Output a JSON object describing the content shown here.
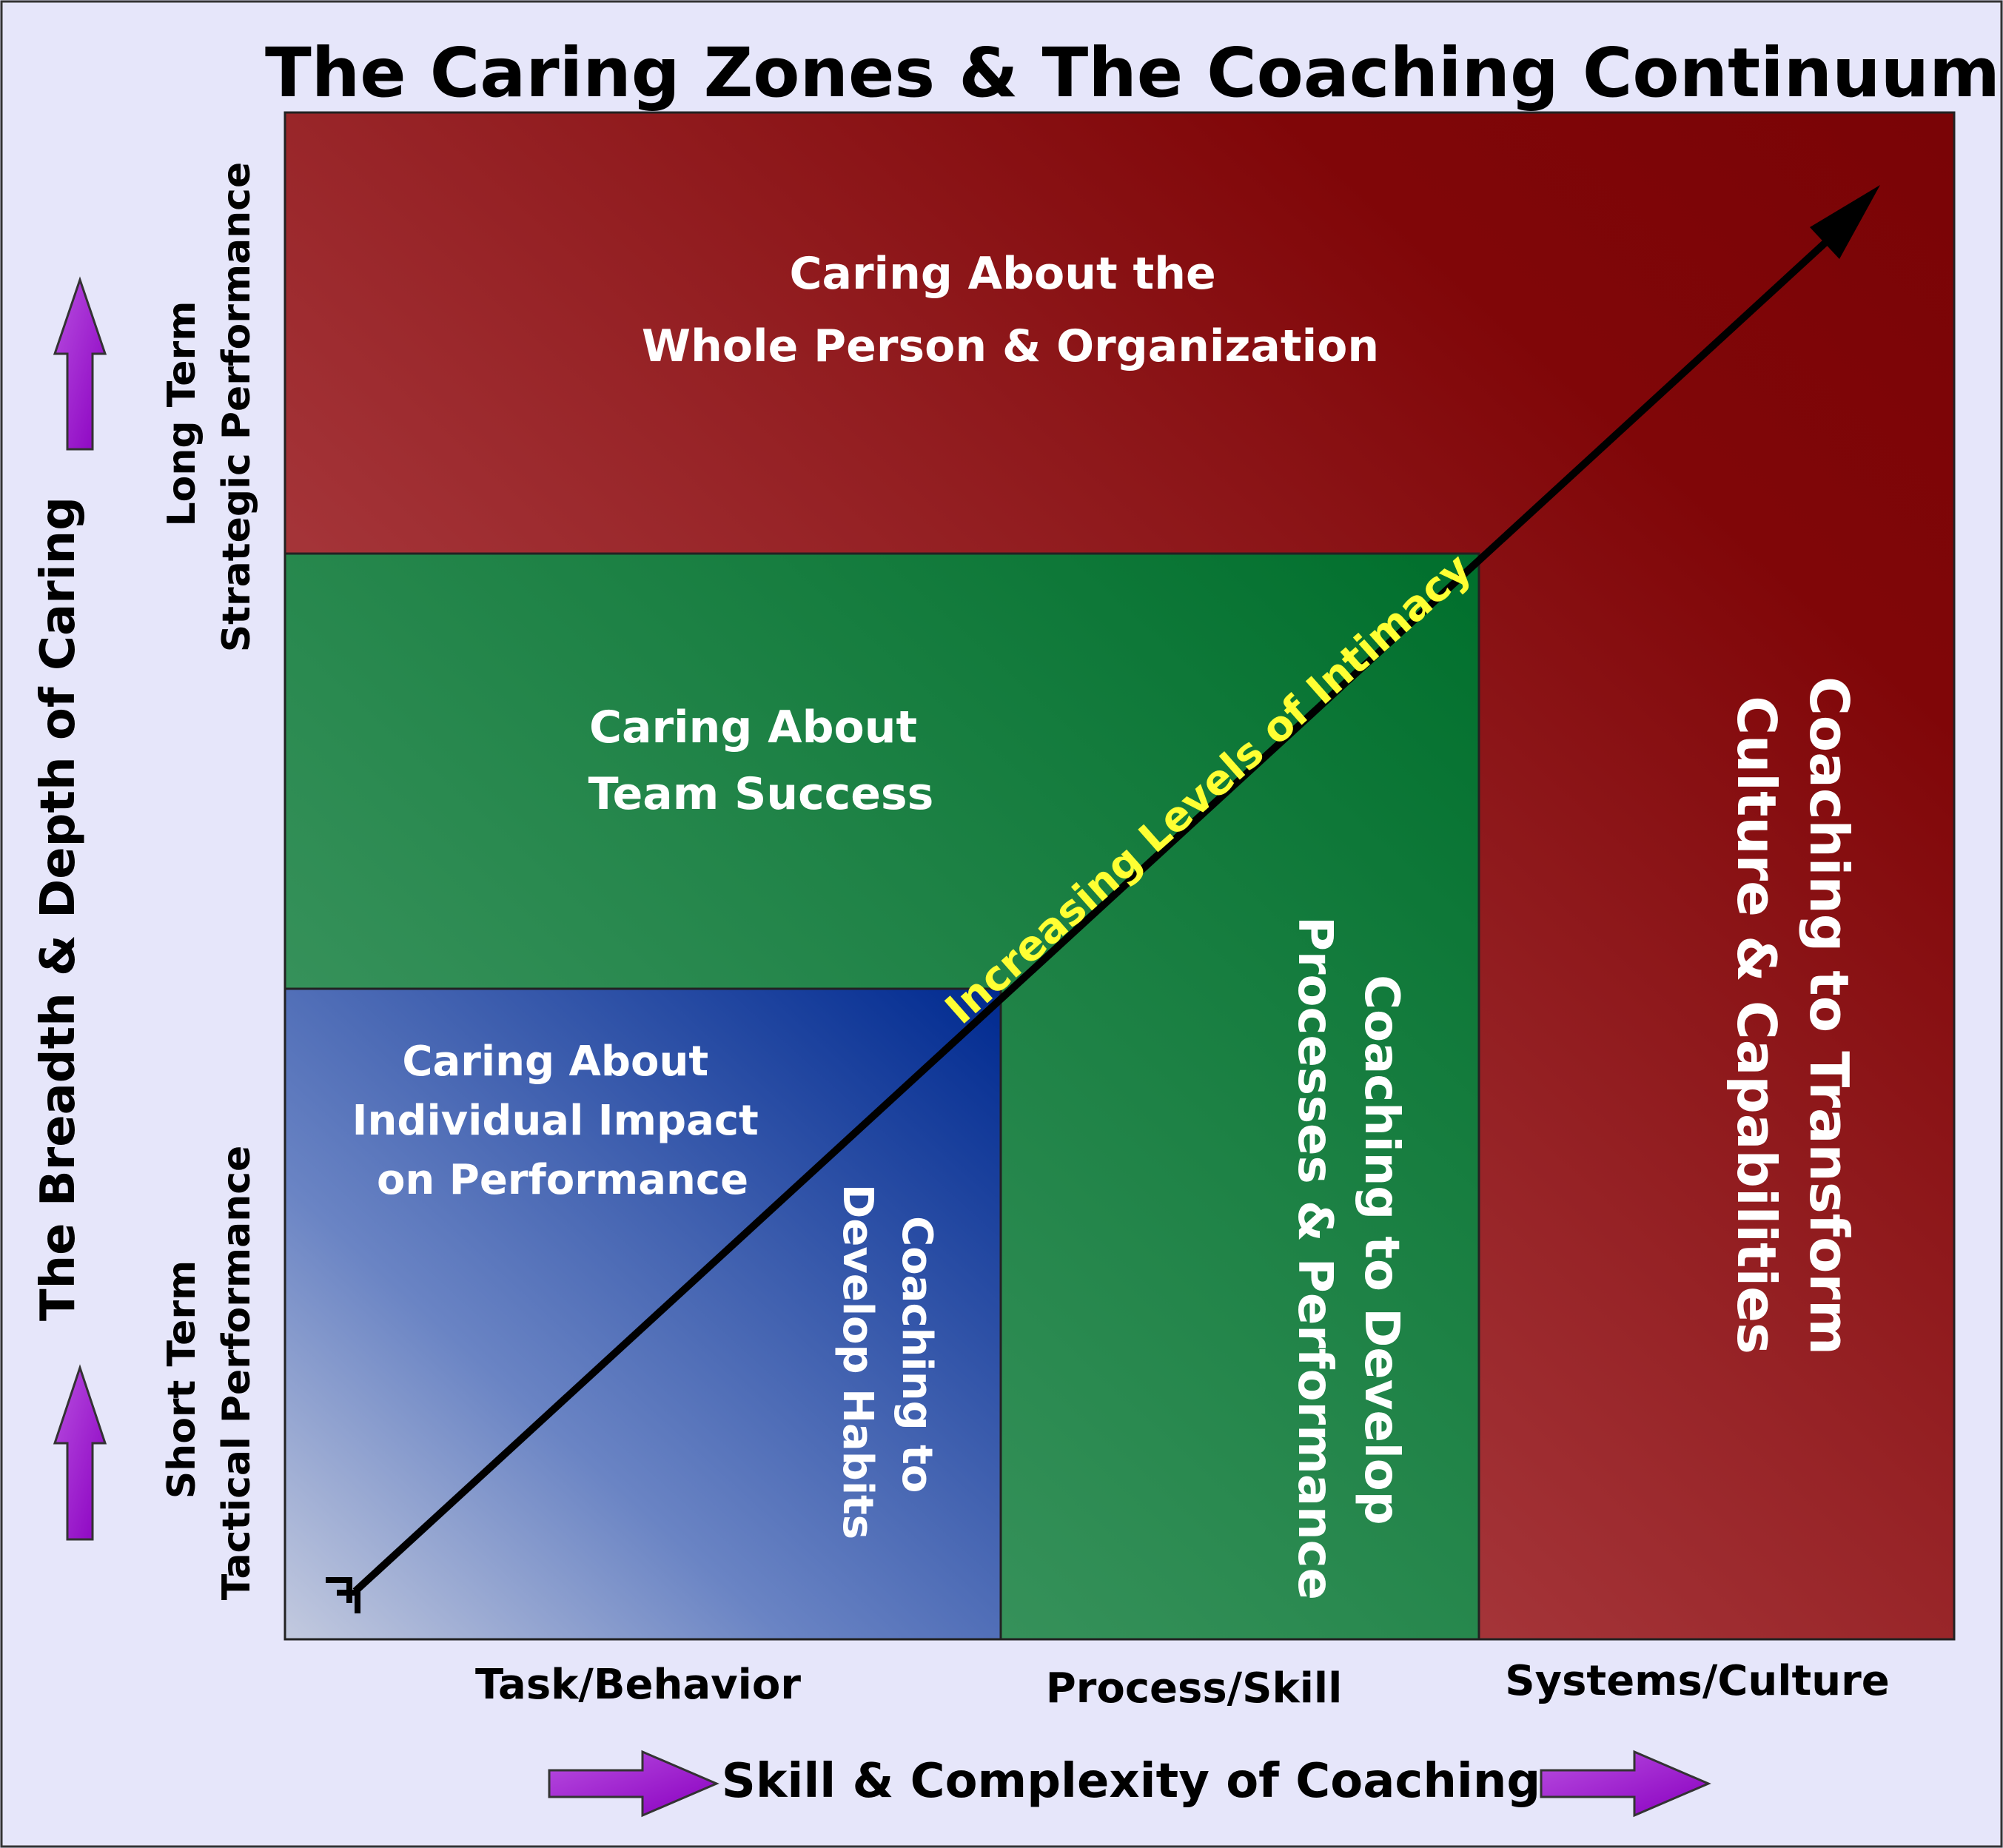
{
  "title": "The Caring Zones & The Coaching Continuum",
  "colors": {
    "background": "#e6e6fa",
    "red_zone": "#8b0a0e",
    "green_zone": "#087433",
    "blue_zone": "#0a3a9a",
    "accent_arrows": "#9b00cc",
    "diagonal_text": "#ffff33"
  },
  "zones": {
    "whole": [
      "Caring About the",
      "Whole Person & Organization"
    ],
    "team": [
      "Caring About",
      "Team Success"
    ],
    "individual": [
      "Caring About",
      "Individual Impact",
      "on Performance"
    ]
  },
  "coaching": {
    "habits": [
      "Coaching to",
      "Develop Habits"
    ],
    "processes": [
      "Coaching to Develop",
      "Processes & Performance"
    ],
    "culture": [
      "Coaching to Transform",
      "Culture & Capabilities"
    ]
  },
  "diagonal_label": "Increasing Levels of Intimacy",
  "x_axis": {
    "categories": [
      "Task/Behavior",
      "Process/Skill",
      "Systems/Culture"
    ],
    "title": "Skill & Complexity of Coaching"
  },
  "y_axis": {
    "title": "The Breadth & Depth of Caring",
    "long_term": [
      "Long Term",
      "Strategic Performance"
    ],
    "short_term": [
      "Short Term",
      "Tactical Performance"
    ]
  },
  "icons": [
    "up-arrow-icon",
    "right-arrow-icon",
    "diagonal-arrow-icon"
  ]
}
